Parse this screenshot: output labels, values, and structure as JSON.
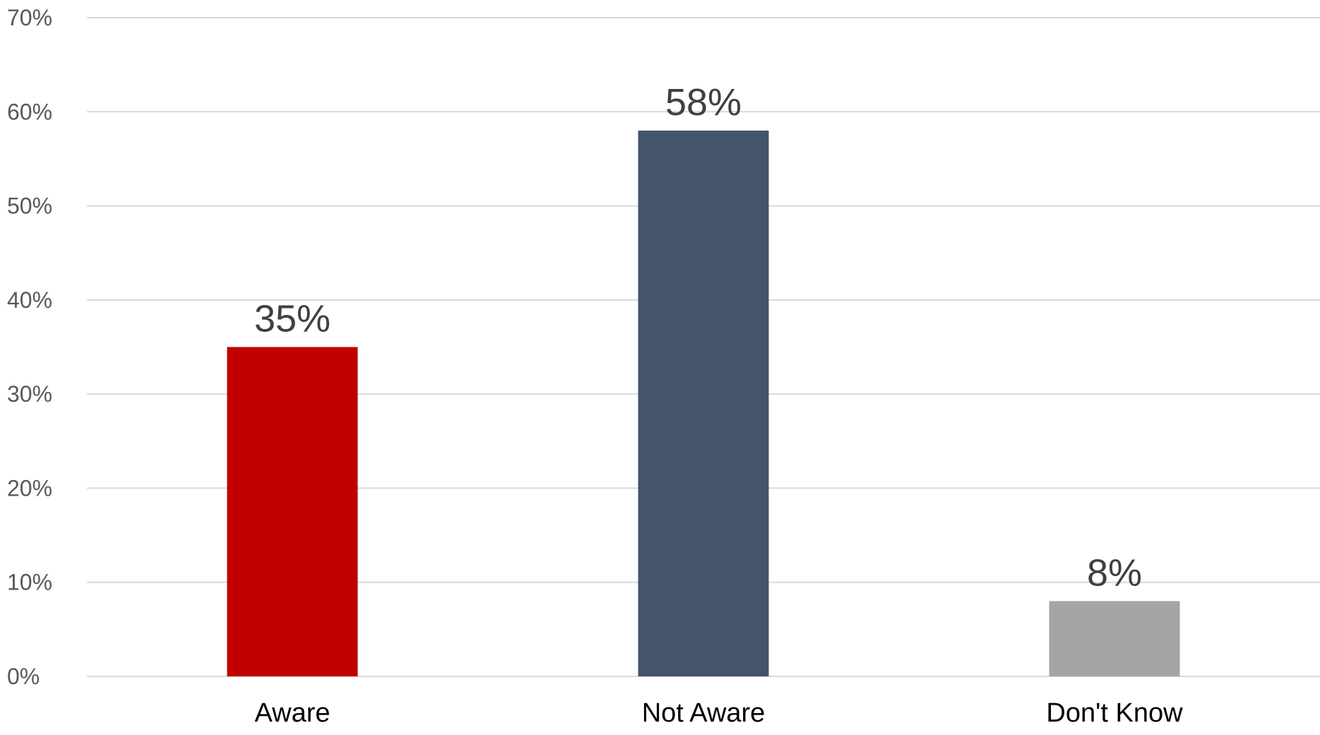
{
  "chart_data": {
    "type": "bar",
    "categories": [
      "Aware",
      "Not Aware",
      "Don't Know"
    ],
    "values": [
      35,
      58,
      8
    ],
    "data_labels": [
      "35%",
      "58%",
      "8%"
    ],
    "colors": [
      "#c00000",
      "#44546a",
      "#a5a5a5"
    ],
    "ylim": [
      0,
      70
    ],
    "yticks": [
      0,
      10,
      20,
      30,
      40,
      50,
      60,
      70
    ],
    "ytick_labels": [
      "0%",
      "10%",
      "20%",
      "30%",
      "40%",
      "50%",
      "60%",
      "70%"
    ],
    "grid": true,
    "legend": "none"
  }
}
